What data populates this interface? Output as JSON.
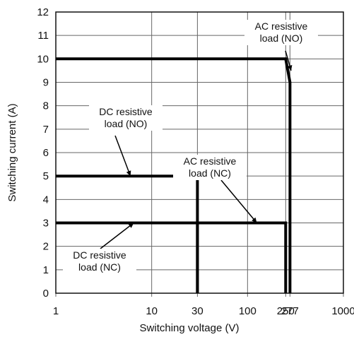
{
  "chart_data": {
    "type": "line",
    "xlabel": "Switching voltage (V)",
    "ylabel": "Switching current (A)",
    "x_scale": "log",
    "xlim": [
      1,
      1000
    ],
    "ylim": [
      0,
      12
    ],
    "grid": true,
    "x_ticks": [
      {
        "value": 1,
        "label": "1"
      },
      {
        "value": 10,
        "label": "10"
      },
      {
        "value": 30,
        "label": "30"
      },
      {
        "value": 100,
        "label": "100"
      },
      {
        "value": 250,
        "label": "250"
      },
      {
        "value": 277,
        "label": "277"
      },
      {
        "value": 1000,
        "label": "1000"
      }
    ],
    "y_ticks": [
      {
        "value": 0,
        "label": "0"
      },
      {
        "value": 1,
        "label": "1"
      },
      {
        "value": 2,
        "label": "2"
      },
      {
        "value": 3,
        "label": "3"
      },
      {
        "value": 4,
        "label": "4"
      },
      {
        "value": 5,
        "label": "5"
      },
      {
        "value": 6,
        "label": "6"
      },
      {
        "value": 7,
        "label": "7"
      },
      {
        "value": 8,
        "label": "8"
      },
      {
        "value": 9,
        "label": "9"
      },
      {
        "value": 10,
        "label": "10"
      },
      {
        "value": 11,
        "label": "11"
      },
      {
        "value": 12,
        "label": "12"
      }
    ],
    "series": [
      {
        "id": "ac-no",
        "label_lines": [
          "AC resistive",
          "load (NO)"
        ],
        "points": [
          [
            1,
            10
          ],
          [
            250,
            10
          ],
          [
            277,
            9
          ],
          [
            277,
            0
          ]
        ],
        "pointer": [
          285,
          9.5
        ]
      },
      {
        "id": "dc-no",
        "label_lines": [
          "DC resistive",
          "load (NO)"
        ],
        "points": [
          [
            1,
            5
          ],
          [
            30,
            5
          ],
          [
            30,
            0
          ]
        ],
        "pointer": [
          6,
          5
        ]
      },
      {
        "id": "ac-nc",
        "label_lines": [
          "AC resistive",
          "load (NC)"
        ],
        "points": [
          [
            1,
            3
          ],
          [
            250,
            3
          ],
          [
            250,
            0
          ]
        ],
        "pointer": [
          125,
          3
        ]
      },
      {
        "id": "dc-nc",
        "label_lines": [
          "DC resistive",
          "load (NC)"
        ],
        "points": [
          [
            1,
            3
          ],
          [
            30,
            3
          ],
          [
            30,
            0
          ]
        ],
        "pointer": [
          6.5,
          3
        ]
      }
    ]
  }
}
